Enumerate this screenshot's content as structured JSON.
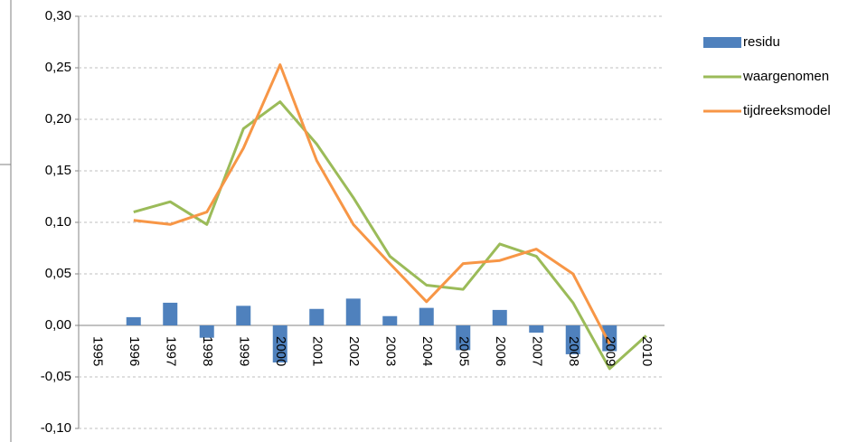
{
  "chart_data": {
    "type": "bar_line",
    "categories": [
      "1995",
      "1996",
      "1997",
      "1998",
      "1999",
      "2000",
      "2001",
      "2002",
      "2003",
      "2004",
      "2005",
      "2006",
      "2007",
      "2008",
      "2009",
      "2010"
    ],
    "series": [
      {
        "name": "residu",
        "type": "bar",
        "color": "#4f81bd",
        "values": [
          null,
          0.008,
          0.022,
          -0.012,
          0.019,
          -0.036,
          0.016,
          0.026,
          0.009,
          0.017,
          -0.024,
          0.015,
          -0.007,
          -0.028,
          -0.025,
          null
        ]
      },
      {
        "name": "waargenomen",
        "type": "line",
        "color": "#9bbb59",
        "values": [
          null,
          0.11,
          0.12,
          0.098,
          0.191,
          0.217,
          0.176,
          0.124,
          0.067,
          0.039,
          0.035,
          0.079,
          0.067,
          0.022,
          -0.042,
          -0.01
        ]
      },
      {
        "name": "tijdreeksmodel",
        "type": "line",
        "color": "#f79646",
        "values": [
          null,
          0.102,
          0.098,
          0.11,
          0.172,
          0.253,
          0.16,
          0.098,
          0.06,
          0.023,
          0.06,
          0.063,
          0.074,
          0.05,
          -0.018,
          null
        ]
      }
    ],
    "ylim": [
      -0.1,
      0.3
    ],
    "yticks": [
      {
        "value": -0.1,
        "label": "-0,10"
      },
      {
        "value": -0.05,
        "label": "-0,05"
      },
      {
        "value": 0,
        "label": "0,00"
      },
      {
        "value": 0.05,
        "label": "0,05"
      },
      {
        "value": 0.1,
        "label": "0,10"
      },
      {
        "value": 0.15,
        "label": "0,15"
      },
      {
        "value": 0.2,
        "label": "0,20"
      },
      {
        "value": 0.25,
        "label": "0,25"
      },
      {
        "value": 0.3,
        "label": "0,30"
      }
    ],
    "grid": true,
    "legend": "right"
  }
}
